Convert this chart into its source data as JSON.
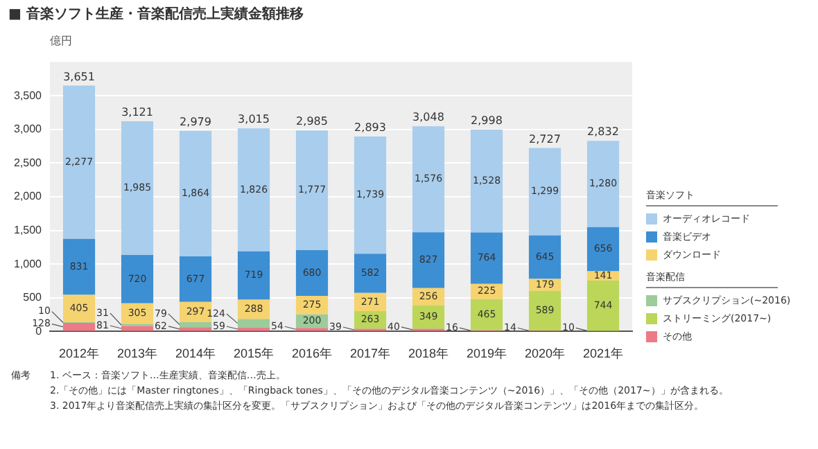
{
  "chart_data": {
    "type": "bar",
    "title": "■ 音楽ソフト生産・音楽配信売上実績金額推移",
    "ylabel": "億円",
    "stacked": true,
    "data_labels": true,
    "grid": "y",
    "legend": "right",
    "categories": [
      "2012年",
      "2013年",
      "2014年",
      "2015年",
      "2016年",
      "2017年",
      "2018年",
      "2019年",
      "2020年",
      "2021年"
    ],
    "ylim": [
      0,
      4000
    ],
    "yticks": [
      0,
      500,
      {
        "value": 1000,
        "label": "1,000"
      },
      {
        "value": 1500,
        "label": "1,500"
      },
      {
        "value": 2000,
        "label": "2,000"
      },
      {
        "value": 2500,
        "label": "2,500"
      },
      {
        "value": 3000,
        "label": "3,000"
      },
      {
        "value": 3500,
        "label": "3,500"
      }
    ],
    "series": [
      {
        "name": "その他",
        "color": "#ec7b87",
        "values": [
          128,
          81,
          62,
          59,
          54,
          39,
          40,
          16,
          14,
          10
        ]
      },
      {
        "name": "ストリーミング(2017~)",
        "color": "#bcd65a",
        "values": [
          null,
          null,
          null,
          null,
          null,
          263,
          349,
          465,
          589,
          744
        ]
      },
      {
        "name": "サブスクリプション(~2016)",
        "color": "#9ccc9a",
        "values": [
          10,
          31,
          79,
          124,
          200,
          null,
          null,
          null,
          null,
          null
        ]
      },
      {
        "name": "ダウンロード",
        "color": "#f5d36f",
        "values": [
          405,
          305,
          297,
          288,
          275,
          271,
          256,
          225,
          179,
          141
        ]
      },
      {
        "name": "音楽ビデオ",
        "color": "#3d8fd4",
        "values": [
          831,
          720,
          677,
          719,
          680,
          582,
          827,
          764,
          645,
          656
        ]
      },
      {
        "name": "オーディオレコード",
        "color": "#a9cdec",
        "values": [
          2277,
          1985,
          1864,
          1826,
          1777,
          1739,
          1576,
          1528,
          1299,
          1280
        ],
        "value_labels": [
          "2,277",
          "1,985",
          "1,864",
          "1,826",
          "1,777",
          "1,739",
          "1,576",
          "1,528",
          "1,299",
          "1,280"
        ]
      }
    ],
    "totals": [
      "3,651",
      "3,121",
      "2,979",
      "3,015",
      "2,985",
      "2,893",
      "3,048",
      "2,998",
      "2,727",
      "2,832"
    ],
    "annotations": [
      "音楽ソフト",
      "音楽配信",
      "備考",
      "1. ベース：音楽ソフト…生産実績、音楽配信…売上。",
      "2.「その他」には「Master ringtones」、「Ringback tones」、「その他のデジタル音楽コンテンツ（~2016）」、「その他（2017~）」が含まれる。",
      "3. 2017年より音楽配信売上実績の集計区分を変更。「サブスクリプション」および「その他のデジタル音楽コンテンツ」は2016年までの集計区分。"
    ]
  }
}
